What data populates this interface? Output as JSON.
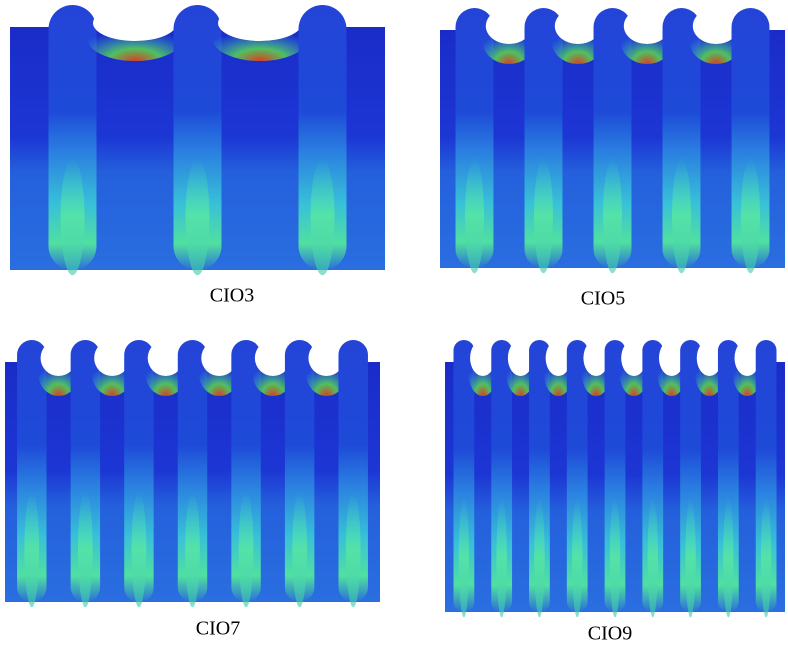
{
  "panels": [
    {
      "label": "CIO3"
    },
    {
      "label": "CIO5"
    },
    {
      "label": "CIO7"
    },
    {
      "label": "CIO9"
    }
  ]
}
